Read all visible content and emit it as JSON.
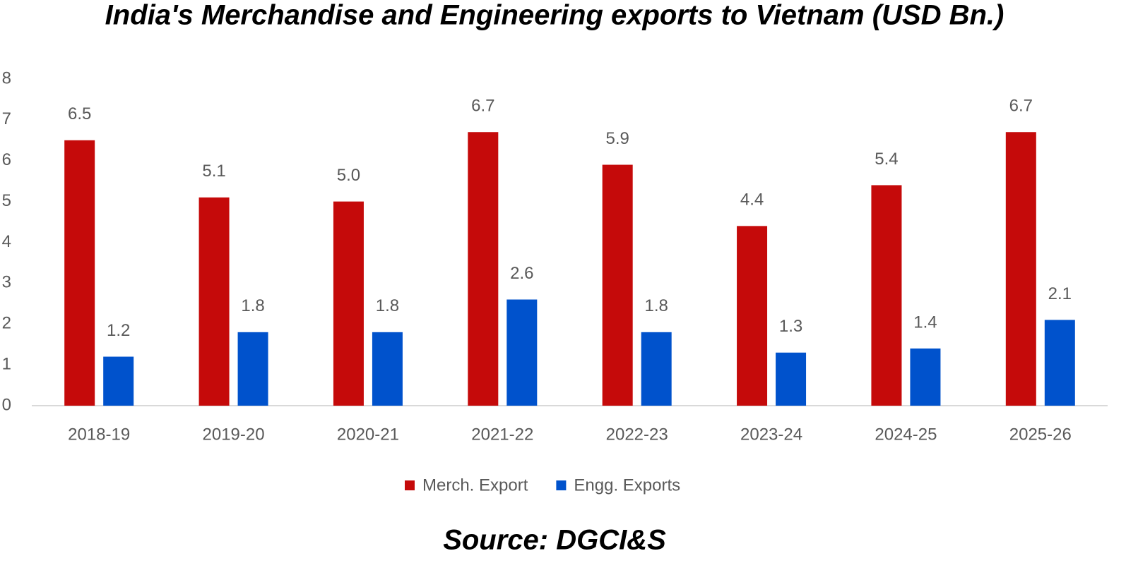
{
  "chart_data": {
    "type": "bar",
    "title": "India's Merchandise and Engineering exports to Vietnam (USD Bn.)",
    "source": "Source: DGCI&S",
    "categories": [
      "2018-19",
      "2019-20",
      "2020-21",
      "2021-22",
      "2022-23",
      "2023-24",
      "2024-25",
      "2025-26"
    ],
    "series": [
      {
        "name": "Merch. Export",
        "color": "#c50a0a",
        "values": [
          6.5,
          5.1,
          5.0,
          6.7,
          5.9,
          4.4,
          5.4,
          6.7
        ],
        "value_labels": [
          "6.5",
          "5.1",
          "5.0",
          "6.7",
          "5.9",
          "4.4",
          "5.4",
          "6.7"
        ]
      },
      {
        "name": "Engg. Exports",
        "color": "#0052cc",
        "values": [
          1.2,
          1.8,
          1.8,
          2.6,
          1.8,
          1.3,
          1.4,
          2.1
        ],
        "value_labels": [
          "1.2",
          "1.8",
          "1.8",
          "2.6",
          "1.8",
          "1.3",
          "1.4",
          "2.1"
        ]
      }
    ],
    "ylim": [
      0,
      8
    ],
    "yticks": [
      0,
      1,
      2,
      3,
      4,
      5,
      6,
      7,
      8
    ],
    "grid": false,
    "legend": "bottom"
  }
}
